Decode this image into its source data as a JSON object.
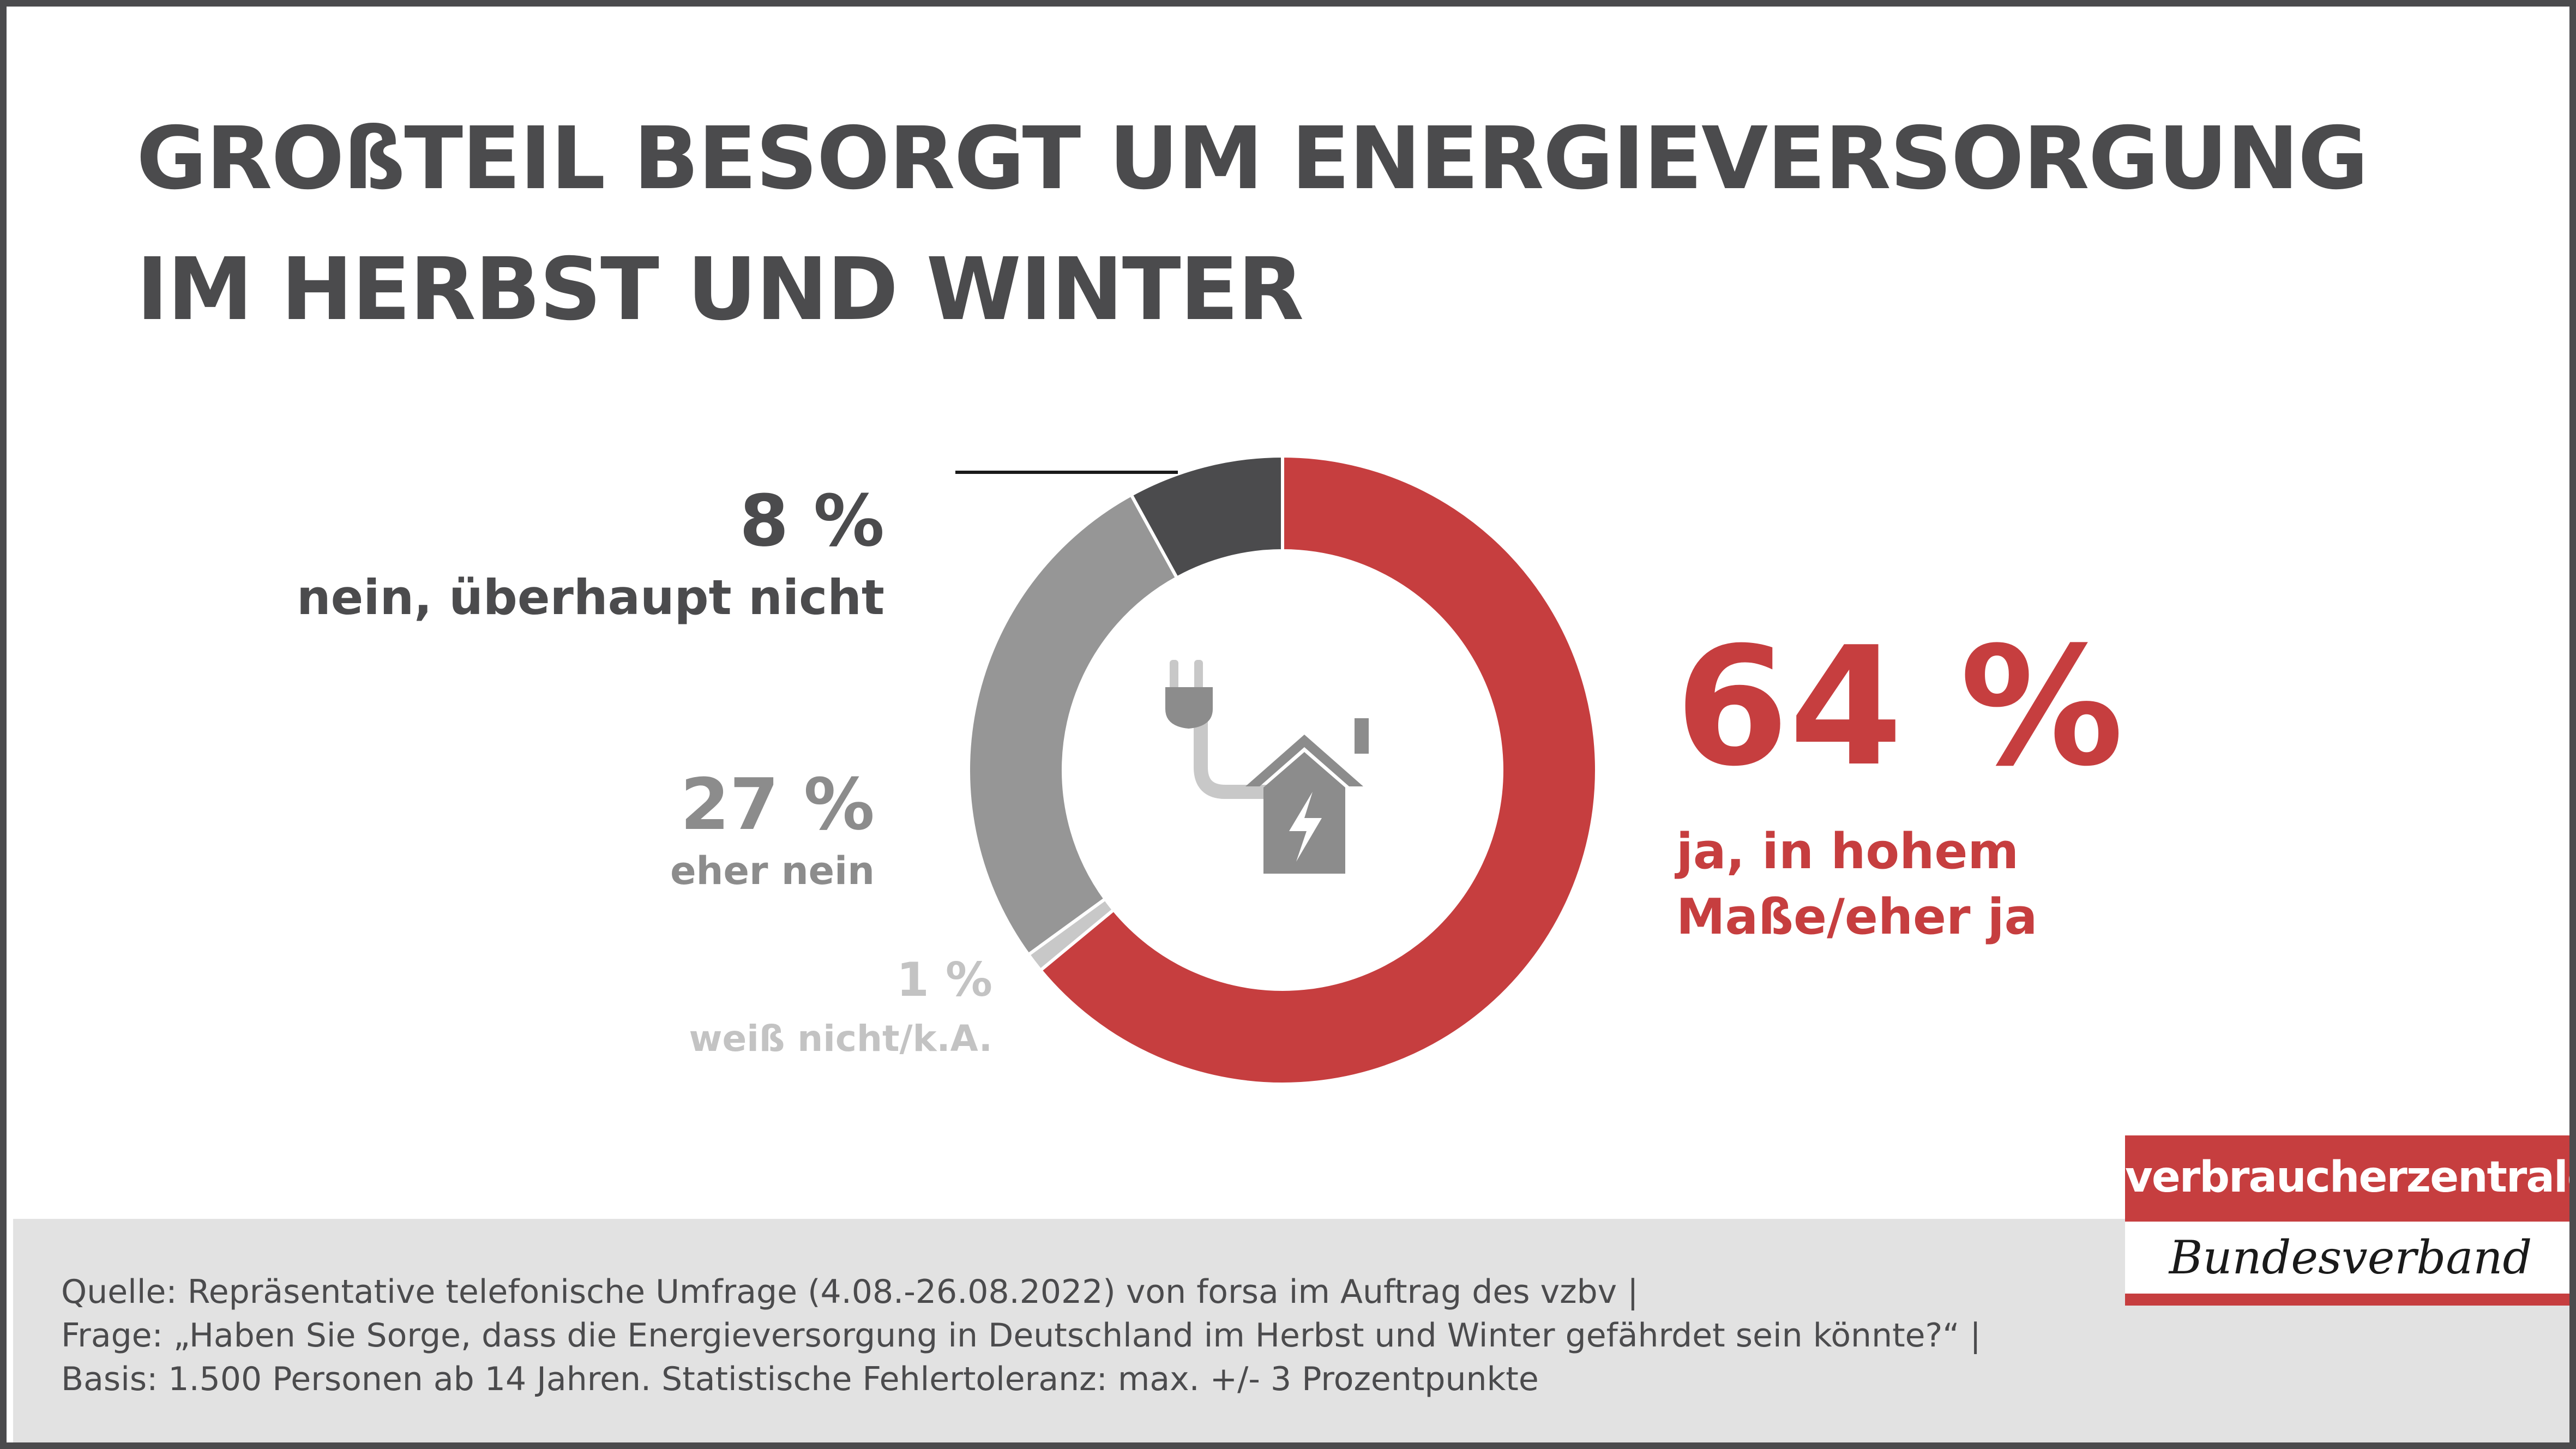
{
  "title_line1": "GROßTEIL BESORGT UM ENERGIEVERSORGUNG",
  "title_line2": "IM HERBST UND WINTER",
  "chart_data": {
    "type": "pie",
    "donut": true,
    "categories": [
      "ja, in hohem Maße/eher ja",
      "weiß nicht/k.A.",
      "eher nein",
      "nein, überhaupt nicht"
    ],
    "values": [
      64,
      1,
      27,
      8
    ],
    "colors": [
      "#c63e3f",
      "#c8c8c8",
      "#969696",
      "#4b4b4d"
    ],
    "center_icon": "house-plug-icon"
  },
  "labels": {
    "yes_value": "64 %",
    "yes_text_line1": "ja, in hohem",
    "yes_text_line2": "Maße/eher ja",
    "dontknow_value": "1 %",
    "dontknow_text": "weiß nicht/k.A.",
    "ratherno_value": "27 %",
    "ratherno_text": "eher nein",
    "notatall_value": "8 %",
    "notatall_text": "nein, überhaupt nicht"
  },
  "source": {
    "line1": "Quelle: Repräsentative telefonische Umfrage (4.08.-26.08.2022) von forsa im Auftrag des vzbv |",
    "line2": "Frage: „Haben Sie Sorge, dass die Energieversorgung in Deutschland im Herbst und Winter gefährdet sein könnte?“ |",
    "line3": "Basis: 1.500 Personen ab 14 Jahren. Statistische Fehlertoleranz: max. +/- 3 Prozentpunkte"
  },
  "logo": {
    "top": "verbraucherzentrale",
    "bottom": "Bundesverband"
  }
}
